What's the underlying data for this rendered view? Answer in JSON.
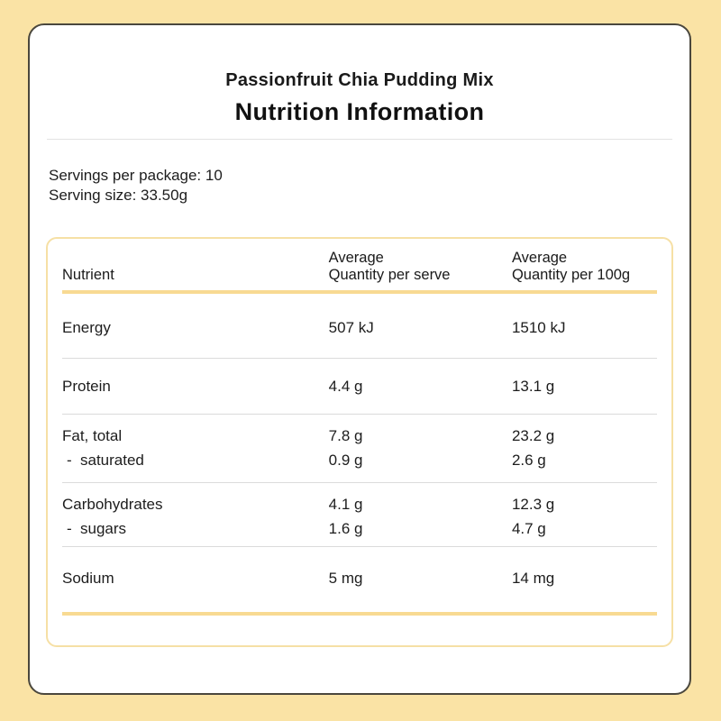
{
  "page": {
    "background_color": "#FAE3A5",
    "card_border_color": "#4a473d",
    "accent_color": "#f8da92",
    "table_border_color": "#f6e0a5"
  },
  "header": {
    "product_name": "Passionfruit Chia Pudding Mix",
    "panel_title": "Nutrition Information"
  },
  "servings": {
    "per_package": "Servings per package: 10",
    "size": "Serving size: 33.50g"
  },
  "table": {
    "headers": {
      "nutrient": "Nutrient",
      "per_serve_line1": "Average",
      "per_serve_line2": "Quantity per serve",
      "per_100g_line1": "Average",
      "per_100g_line2": "Quantity per 100g"
    },
    "rows": [
      {
        "name": "Energy",
        "serve": "507 kJ",
        "per100": "1510 kJ"
      },
      {
        "name": "Protein",
        "serve": "4.4 g",
        "per100": "13.1 g"
      },
      {
        "name": "Fat, total",
        "serve": "7.8 g",
        "per100": "23.2 g"
      },
      {
        "name": "saturated",
        "prefix": "-",
        "serve": "0.9 g",
        "per100": "2.6 g"
      },
      {
        "name": "Carbohydrates",
        "serve": "4.1 g",
        "per100": "12.3 g"
      },
      {
        "name": "sugars",
        "prefix": "-",
        "serve": "1.6 g",
        "per100": "4.7 g"
      },
      {
        "name": "Sodium",
        "serve": "5 mg",
        "per100": "14 mg"
      }
    ]
  }
}
